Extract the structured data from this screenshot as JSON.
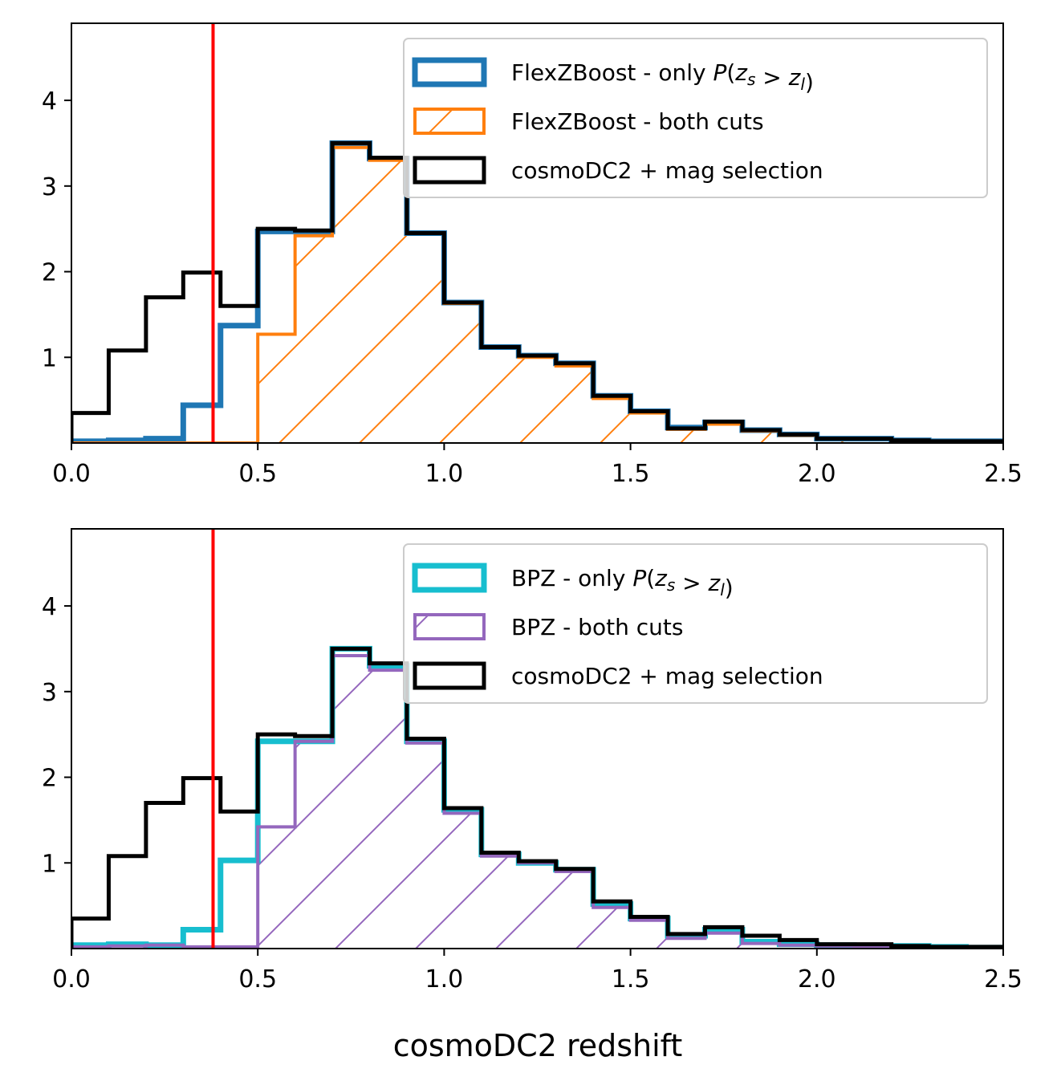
{
  "chart_data": [
    {
      "type": "histogram",
      "xlim": [
        0.0,
        2.5
      ],
      "ylim": [
        0,
        4.9
      ],
      "xticks": [
        "0.0",
        "0.5",
        "1.0",
        "1.5",
        "2.0",
        "2.5"
      ],
      "yticks": [
        "1",
        "2",
        "3",
        "4"
      ],
      "xlabel": "",
      "vline": {
        "x": 0.38,
        "color": "#ff0000"
      },
      "legend_location": "upper-right",
      "bin_edges": [
        0.0,
        0.1,
        0.2,
        0.3,
        0.4,
        0.5,
        0.6,
        0.7,
        0.8,
        0.9,
        1.0,
        1.1,
        1.2,
        1.3,
        1.4,
        1.5,
        1.6,
        1.7,
        1.8,
        1.9,
        2.0,
        2.1,
        2.2,
        2.3,
        2.4,
        2.5
      ],
      "series": [
        {
          "name": "FlexZBoost - only",
          "name_math": "P(zs > zl)",
          "style": "step",
          "color": "#1f77b4",
          "values": [
            0.02,
            0.03,
            0.05,
            0.44,
            1.37,
            2.47,
            2.47,
            3.5,
            3.32,
            2.45,
            1.64,
            1.12,
            1.02,
            0.93,
            0.55,
            0.37,
            0.18,
            0.24,
            0.15,
            0.1,
            0.05,
            0.05,
            0.03,
            0.02,
            0.02
          ]
        },
        {
          "name": "FlexZBoost - both cuts",
          "style": "hatched",
          "color": "#ff7f0e",
          "values": [
            0.0,
            0.0,
            0.0,
            0.0,
            0.0,
            1.27,
            2.42,
            3.45,
            3.3,
            2.45,
            1.63,
            1.12,
            1.0,
            0.9,
            0.52,
            0.35,
            0.16,
            0.22,
            0.14,
            0.09,
            0.05,
            0.05,
            0.03,
            0.02,
            0.01
          ]
        },
        {
          "name": "cosmoDC2 + mag selection",
          "style": "step",
          "color": "#000000",
          "values": [
            0.35,
            1.08,
            1.7,
            1.99,
            1.6,
            2.5,
            2.48,
            3.5,
            3.33,
            2.45,
            1.64,
            1.12,
            1.02,
            0.93,
            0.55,
            0.37,
            0.17,
            0.25,
            0.15,
            0.1,
            0.05,
            0.05,
            0.03,
            0.02,
            0.02
          ]
        }
      ]
    },
    {
      "type": "histogram",
      "xlim": [
        0.0,
        2.5
      ],
      "ylim": [
        0,
        4.9
      ],
      "xticks": [
        "0.0",
        "0.5",
        "1.0",
        "1.5",
        "2.0",
        "2.5"
      ],
      "yticks": [
        "1",
        "2",
        "3",
        "4"
      ],
      "xlabel": "cosmoDC2 redshift",
      "vline": {
        "x": 0.38,
        "color": "#ff0000"
      },
      "legend_location": "upper-right",
      "bin_edges": [
        0.0,
        0.1,
        0.2,
        0.3,
        0.4,
        0.5,
        0.6,
        0.7,
        0.8,
        0.9,
        1.0,
        1.1,
        1.2,
        1.3,
        1.4,
        1.5,
        1.6,
        1.7,
        1.8,
        1.9,
        2.0,
        2.1,
        2.2,
        2.3,
        2.4,
        2.5
      ],
      "series": [
        {
          "name": "BPZ - only",
          "name_math": "P(zs > zl)",
          "style": "step",
          "color": "#17becf",
          "values": [
            0.04,
            0.05,
            0.04,
            0.22,
            1.03,
            2.42,
            2.42,
            3.5,
            3.3,
            2.42,
            1.62,
            1.1,
            1.0,
            0.92,
            0.52,
            0.35,
            0.15,
            0.22,
            0.08,
            0.05,
            0.04,
            0.03,
            0.03,
            0.02,
            0.01
          ]
        },
        {
          "name": "BPZ - both cuts",
          "style": "hatched",
          "color": "#9467bd",
          "values": [
            0.02,
            0.03,
            0.04,
            0.02,
            0.02,
            1.42,
            2.42,
            3.42,
            3.25,
            2.4,
            1.58,
            1.08,
            1.0,
            0.9,
            0.48,
            0.33,
            0.12,
            0.18,
            0.06,
            0.04,
            0.03,
            0.02,
            0.02,
            0.01,
            0.01
          ]
        },
        {
          "name": "cosmoDC2 + mag selection",
          "style": "step",
          "color": "#000000",
          "values": [
            0.35,
            1.08,
            1.7,
            1.99,
            1.6,
            2.5,
            2.48,
            3.5,
            3.33,
            2.45,
            1.64,
            1.12,
            1.02,
            0.93,
            0.55,
            0.37,
            0.17,
            0.25,
            0.15,
            0.1,
            0.05,
            0.05,
            0.03,
            0.02,
            0.02
          ]
        }
      ]
    }
  ]
}
